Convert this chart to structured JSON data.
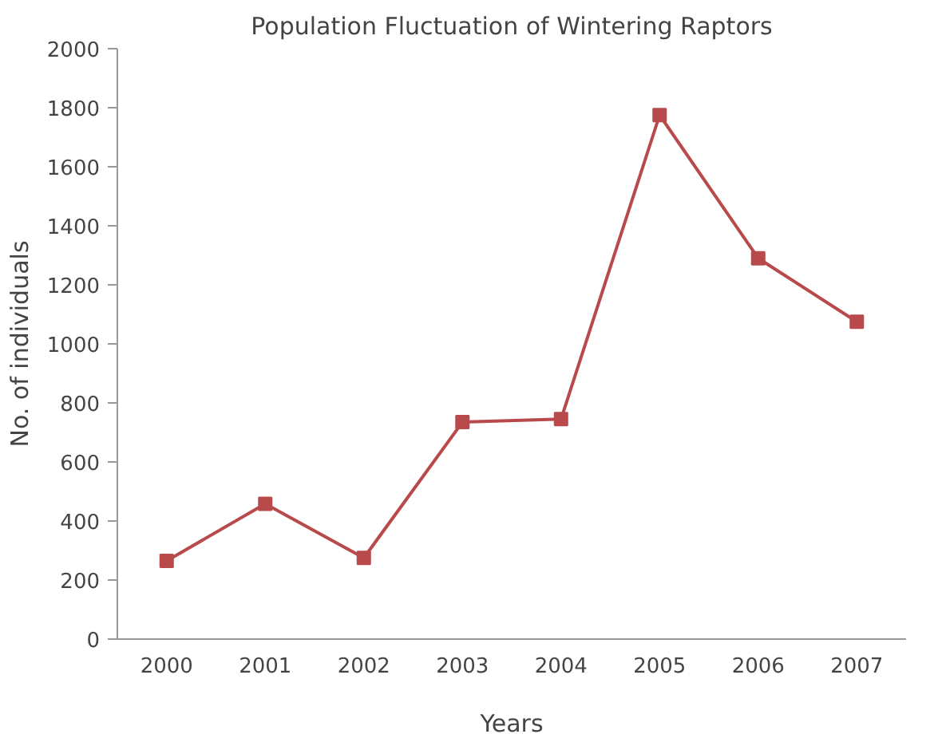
{
  "chart_data": {
    "type": "line",
    "title": "Population Fluctuation of Wintering Raptors",
    "xlabel": "Years",
    "ylabel": "No. of individuals",
    "categories": [
      "2000",
      "2001",
      "2002",
      "2003",
      "2004",
      "2005",
      "2006",
      "2007"
    ],
    "series": [
      {
        "color": "#b94a4c",
        "values": [
          265,
          458,
          275,
          735,
          745,
          1775,
          1290,
          1075
        ]
      }
    ],
    "ylim": [
      0,
      2000
    ],
    "yticks": [
      0,
      200,
      400,
      600,
      800,
      1000,
      1200,
      1400,
      1600,
      1800,
      2000
    ],
    "grid": false,
    "marker": "square",
    "line_style": "solid"
  }
}
